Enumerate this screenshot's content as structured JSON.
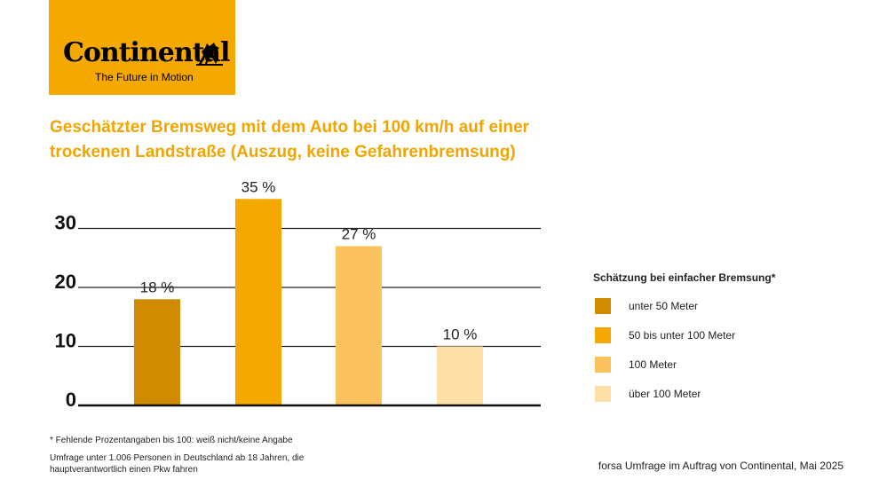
{
  "logo": {
    "wordmark": "Continental",
    "tagline": "The Future in Motion",
    "background": "#f5a800"
  },
  "title_lines": [
    "Geschätzter Bremsweg mit dem Auto bei 100 km/h auf einer",
    "trockenen Landstraße (Auszug, keine Gefahrenbremsung)"
  ],
  "chart_data": {
    "type": "bar",
    "title": "Geschätzter Bremsweg mit dem Auto bei 100 km/h auf einer trockenen Landstraße (Auszug, keine Gefahrenbremsung)",
    "categories": [
      "unter 50 Meter",
      "50 bis unter 100 Meter",
      "100 Meter",
      "über 100 Meter"
    ],
    "values": [
      18,
      35,
      27,
      10
    ],
    "value_labels": [
      "18 %",
      "35 %",
      "27 %",
      "10 %"
    ],
    "colors": [
      "#d18b00",
      "#f5a800",
      "#fbc25e",
      "#fde0a8"
    ],
    "yticks": [
      0,
      10,
      20,
      30
    ],
    "ylim": [
      0,
      35
    ],
    "grid": true,
    "legend_title": "Schätzung bei einfacher Bremsung*",
    "legend_position": "right"
  },
  "footnotes": {
    "missing": "* Fehlende Prozentangaben bis 100: weiß nicht/keine Angabe",
    "survey": "Umfrage unter 1.006 Personen in Deutschland ab 18 Jahren, die hauptverantwortlich einen Pkw fahren"
  },
  "source": "forsa Umfrage im Auftrag von Continental, Mai 2025"
}
